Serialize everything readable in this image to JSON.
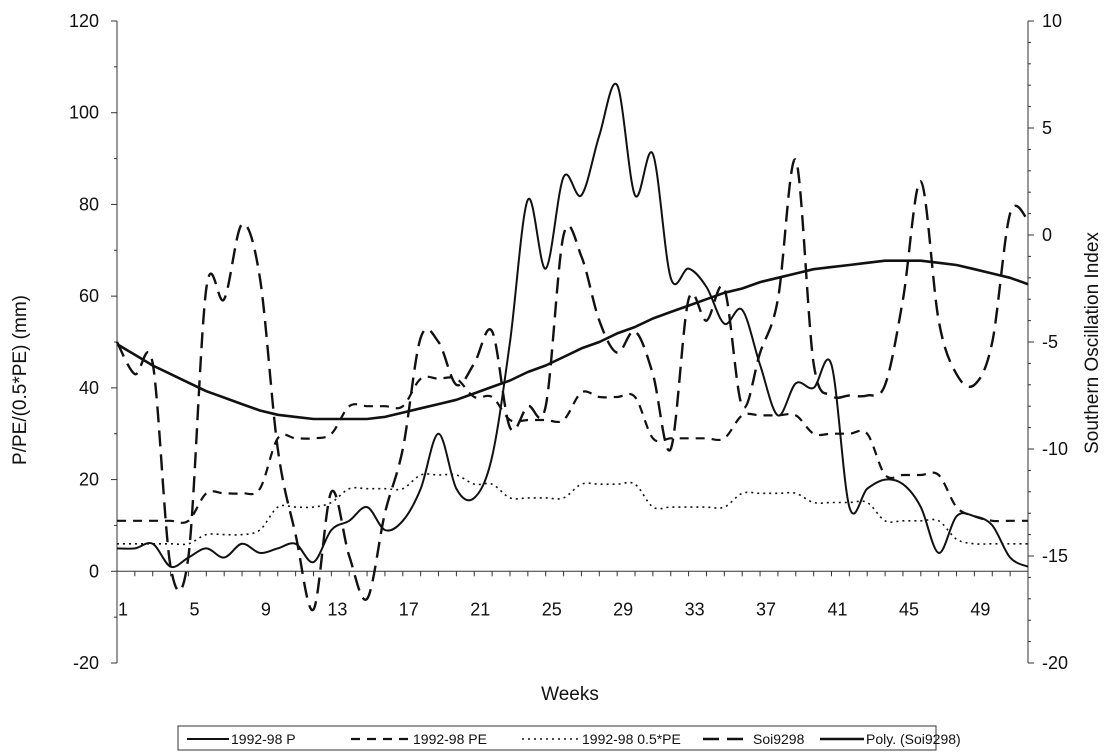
{
  "chart_data": {
    "type": "line",
    "title": "",
    "xlabel": "Weeks",
    "ylabel_left": "P/PE/(0.5*PE) (mm)",
    "ylabel_right": "Southern Oscillation Index",
    "xlim": [
      1,
      52
    ],
    "ylim_left": [
      -20,
      120
    ],
    "ylim_right": [
      -20,
      10
    ],
    "x_ticks": [
      1,
      5,
      9,
      13,
      17,
      21,
      25,
      29,
      33,
      37,
      41,
      45,
      49
    ],
    "y_ticks_left": [
      -20,
      0,
      20,
      40,
      60,
      80,
      100,
      120
    ],
    "y_ticks_right": [
      -20,
      -15,
      -10,
      -5,
      0,
      5,
      10
    ],
    "x": [
      1,
      2,
      3,
      4,
      5,
      6,
      7,
      8,
      9,
      10,
      11,
      12,
      13,
      14,
      15,
      16,
      17,
      18,
      19,
      20,
      21,
      22,
      23,
      24,
      25,
      26,
      27,
      28,
      29,
      30,
      31,
      32,
      33,
      34,
      35,
      36,
      37,
      38,
      39,
      40,
      41,
      42,
      43,
      44,
      45,
      46,
      47,
      48,
      49,
      50,
      51,
      52
    ],
    "grid": false,
    "legend_position": "bottom",
    "series": [
      {
        "name": "1992-98 P",
        "axis": "left",
        "style": "solid",
        "values": [
          5,
          5,
          6,
          1,
          3,
          5,
          3,
          6,
          4,
          5,
          6,
          2,
          9,
          11,
          14,
          9,
          11,
          18,
          30,
          18,
          16,
          25,
          50,
          81,
          66,
          86,
          82,
          95,
          106,
          82,
          91,
          64,
          66,
          62,
          54,
          57,
          45,
          34,
          41,
          40,
          45,
          14,
          18,
          20,
          19,
          14,
          4,
          12,
          12,
          10,
          3,
          1
        ]
      },
      {
        "name": "1992-98 PE",
        "axis": "left",
        "style": "dashed",
        "values": [
          11,
          11,
          11,
          11,
          11,
          17,
          17,
          17,
          18,
          29,
          29,
          29,
          30,
          36,
          36,
          36,
          36,
          42,
          42,
          42,
          38,
          38,
          33,
          33,
          33,
          33,
          39,
          38,
          38,
          38,
          29,
          29,
          29,
          29,
          29,
          34,
          34,
          34,
          34,
          30,
          30,
          30,
          30,
          21,
          21,
          21,
          21,
          14,
          12,
          11,
          11,
          11
        ]
      },
      {
        "name": "1992-98 0.5*PE",
        "axis": "left",
        "style": "dotted",
        "values": [
          6,
          6,
          6,
          6,
          6,
          8,
          8,
          8,
          9,
          14,
          14,
          14,
          15,
          18,
          18,
          18,
          18,
          21,
          21,
          21,
          19,
          19,
          16,
          16,
          16,
          16,
          19,
          19,
          19,
          19,
          14,
          14,
          14,
          14,
          14,
          17,
          17,
          17,
          17,
          15,
          15,
          15,
          15,
          11,
          11,
          11,
          11,
          7,
          6,
          6,
          6,
          6
        ]
      },
      {
        "name": "Soi9298",
        "axis": "right",
        "style": "long-dash",
        "values": [
          -5,
          -6.5,
          -6,
          -15.5,
          -15,
          -2.5,
          -3,
          0.5,
          -2,
          -10,
          -14,
          -17.5,
          -12,
          -15,
          -17,
          -13,
          -10,
          -4.8,
          -5,
          -7,
          -6,
          -4.5,
          -9,
          -8,
          -8,
          0,
          -1,
          -4,
          -5.5,
          -4.5,
          -6.5,
          -10,
          -3,
          -4,
          -2.5,
          -8,
          -5.5,
          -3,
          3.5,
          -6,
          -7.5,
          -7.5,
          -7.5,
          -7,
          -3,
          2.5,
          -4,
          -6.5,
          -7,
          -5,
          1,
          0.7
        ]
      },
      {
        "name": "Poly. (Soi9298)",
        "axis": "right",
        "style": "solid-bold",
        "values": [
          -5.1,
          -5.6,
          -6.1,
          -6.5,
          -6.9,
          -7.3,
          -7.6,
          -7.9,
          -8.2,
          -8.4,
          -8.5,
          -8.6,
          -8.6,
          -8.6,
          -8.6,
          -8.5,
          -8.3,
          -8.1,
          -7.9,
          -7.7,
          -7.4,
          -7.1,
          -6.8,
          -6.4,
          -6.1,
          -5.7,
          -5.3,
          -5.0,
          -4.6,
          -4.3,
          -3.9,
          -3.6,
          -3.3,
          -3.0,
          -2.7,
          -2.5,
          -2.2,
          -2.0,
          -1.8,
          -1.6,
          -1.5,
          -1.4,
          -1.3,
          -1.2,
          -1.2,
          -1.2,
          -1.3,
          -1.4,
          -1.6,
          -1.8,
          -2.0,
          -2.3
        ]
      }
    ]
  }
}
